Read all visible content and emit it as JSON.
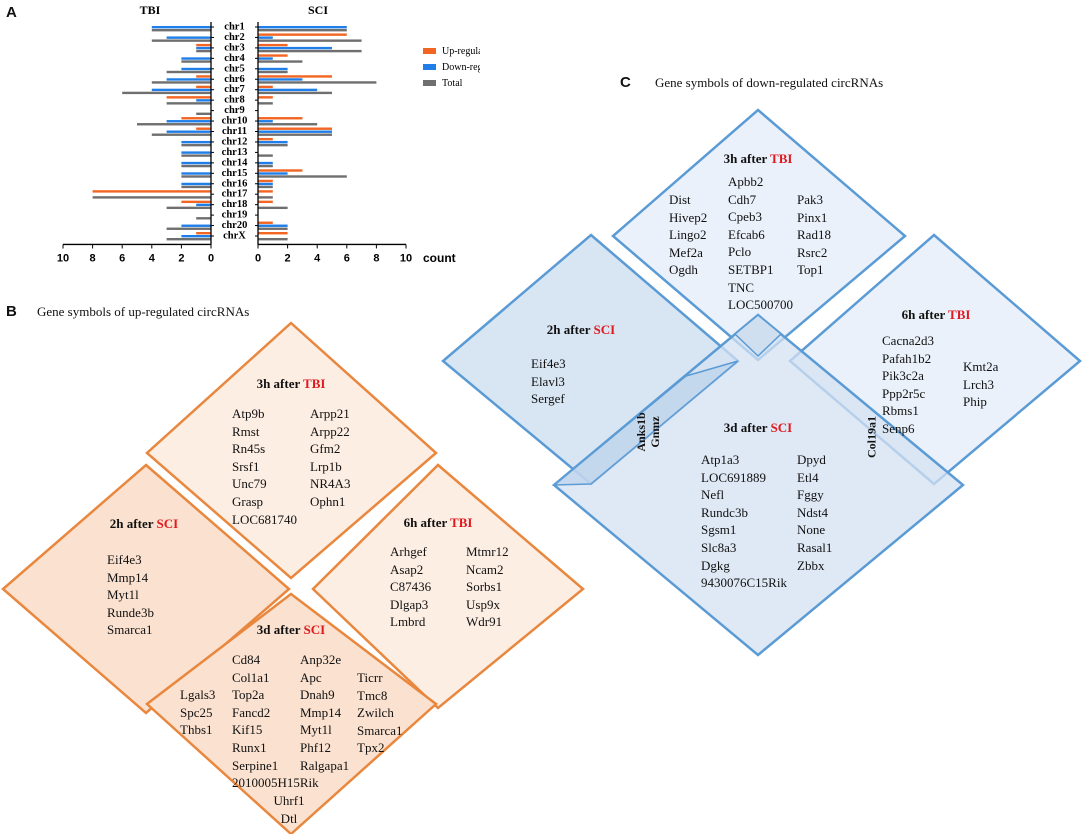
{
  "panels": {
    "a": "A",
    "b": "B",
    "c": "C"
  },
  "chart_data": {
    "type": "bar",
    "orientation": "horizontal",
    "mirrored": true,
    "left_title": "TBI",
    "right_title": "SCI",
    "xlabel": "count",
    "categories": [
      "chr1",
      "chr2",
      "chr3",
      "chr4",
      "chr5",
      "chr6",
      "chr7",
      "chr8",
      "chr9",
      "chr10",
      "chr11",
      "chr12",
      "chr13",
      "chr14",
      "chr15",
      "chr16",
      "chr17",
      "chr18",
      "chr19",
      "chr20",
      "chrX"
    ],
    "left_ticks": [
      "10",
      "8",
      "6",
      "4",
      "2",
      "0"
    ],
    "right_ticks": [
      "0",
      "2",
      "4",
      "6",
      "8",
      "10"
    ],
    "xlim": [
      0,
      10
    ],
    "legend_position": "right",
    "series": [
      {
        "name": "Up-regulated circRNAs",
        "color": "#f26522",
        "tbi": [
          0,
          0,
          1,
          0,
          0,
          1,
          1,
          3,
          0,
          2,
          1,
          0,
          0,
          0,
          0,
          0,
          8,
          2,
          0,
          0,
          1
        ],
        "sci": [
          0,
          6,
          2,
          2,
          0,
          5,
          1,
          1,
          0,
          3,
          5,
          1,
          0,
          0,
          3,
          1,
          1,
          1,
          0,
          1,
          2
        ]
      },
      {
        "name": "Down-regulated circRNAs",
        "color": "#1f7ee8",
        "tbi": [
          4,
          3,
          1,
          2,
          2,
          3,
          4,
          1,
          0,
          3,
          3,
          2,
          2,
          2,
          2,
          2,
          0,
          1,
          0,
          2,
          2
        ],
        "sci": [
          6,
          1,
          5,
          1,
          2,
          3,
          4,
          0,
          0,
          1,
          5,
          2,
          0,
          1,
          2,
          1,
          0,
          0,
          0,
          2,
          0
        ]
      },
      {
        "name": "Total",
        "color": "#6f6f6f",
        "tbi": [
          4,
          4,
          1,
          2,
          3,
          4,
          6,
          3,
          1,
          5,
          4,
          2,
          2,
          2,
          2,
          2,
          8,
          3,
          1,
          3,
          3
        ],
        "sci": [
          6,
          7,
          7,
          3,
          2,
          8,
          5,
          1,
          0,
          4,
          5,
          2,
          1,
          1,
          6,
          1,
          1,
          2,
          0,
          2,
          2
        ]
      }
    ]
  },
  "up": {
    "title": "Gene symbols of up-regulated circRNAs",
    "tbi3h": {
      "prefix": "3h after ",
      "suffix": "TBI",
      "col1": [
        "Atp9b",
        "Rmst",
        "Rn45s",
        "Srsf1",
        "Unc79",
        "Grasp",
        "LOC681740"
      ],
      "col2": [
        "Arpp21",
        "Arpp22",
        "Gfm2",
        "Lrp1b",
        "NR4A3",
        "Ophn1"
      ]
    },
    "sci2h": {
      "prefix": "2h after ",
      "suffix": "SCI",
      "col1": [
        "Eif4e3",
        "Mmp14",
        "Myt1l",
        "Runde3b",
        "Smarca1"
      ]
    },
    "tbi6h": {
      "prefix": "6h after ",
      "suffix": "TBI",
      "col1": [
        "Arhgef",
        "Asap2",
        "C87436",
        "Dlgap3",
        "Lmbrd"
      ],
      "col2": [
        "Mtmr12",
        "Ncam2",
        "Sorbs1",
        "Usp9x",
        "Wdr91"
      ]
    },
    "sci3d": {
      "prefix": "3d after ",
      "suffix": "SCI",
      "col0": [
        "Lgals3",
        "Spc25",
        "Thbs1"
      ],
      "col1": [
        "Cd84",
        "Col1a1",
        "Top2a",
        "Fancd2",
        "Kif15",
        "Runx1",
        "Serpine1",
        "2010005H15Rik"
      ],
      "col2": [
        "Anp32e",
        "Apc",
        "Dnah9",
        "Mmp14",
        "Myt1l",
        "Phf12",
        "Ralgapa1"
      ],
      "col3": [
        "Ticrr",
        "Tmc8",
        "Zwilch",
        "Smarca1",
        "Tpx2"
      ],
      "bottom": [
        "Uhrf1",
        "Dtl"
      ]
    }
  },
  "down": {
    "title": "Gene symbols of down-regulated circRNAs",
    "tbi3h": {
      "prefix": "3h after ",
      "suffix": "TBI",
      "col1": [
        "Dist",
        "Hivep2",
        "Lingo2",
        "Mef2a",
        "Ogdh"
      ],
      "col2": [
        "Apbb2",
        "Cdh7",
        "Cpeb3",
        "Efcab6",
        "Pclo",
        "SETBP1",
        "TNC",
        "LOC500700"
      ],
      "col3": [
        "Pak3",
        "Pinx1",
        "Rad18",
        "Rsrc2",
        "Top1"
      ]
    },
    "sci2h": {
      "prefix": "2h after ",
      "suffix": "SCI",
      "col1": [
        "Eif4e3",
        "Elavl3",
        "Sergef"
      ]
    },
    "tbi6h": {
      "prefix": "6h after ",
      "suffix": "TBI",
      "col1": [
        "Cacna2d3",
        "Pafah1b2",
        "Pik3c2a",
        "Ppp2r5c",
        "Rbms1",
        "Senp6"
      ],
      "col2": [
        "Kmt2a",
        "Lrch3",
        "Phip"
      ]
    },
    "sci3d": {
      "prefix": "3d after ",
      "suffix": "SCI",
      "col1": [
        "Atp1a3",
        "LOC691889",
        "Nefl",
        "Rundc3b",
        "Sgsm1",
        "Slc8a3",
        "Dgkg",
        "9430076C15Rik"
      ],
      "col2": [
        "Dpyd",
        "Etl4",
        "Fggy",
        "Ndst4",
        "None",
        "Rasal1",
        "Zbbx"
      ]
    },
    "overlap_left": [
      "Anks1b",
      "Gnmz"
    ],
    "overlap_right": "Col19a1"
  }
}
